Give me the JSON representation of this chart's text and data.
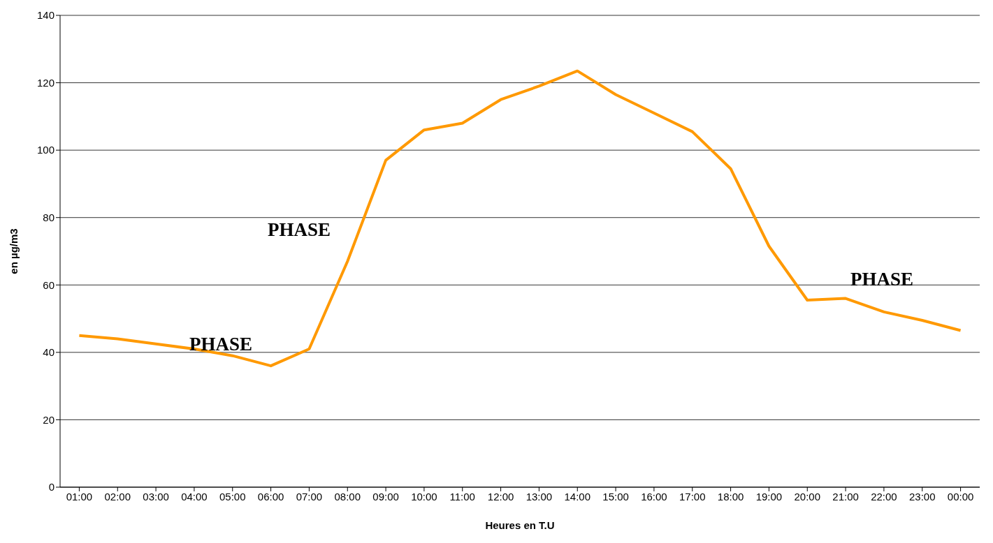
{
  "chart_data": {
    "type": "line",
    "xlabel": "Heures en T.U",
    "ylabel": "en µg/m3",
    "categories": [
      "01:00",
      "02:00",
      "03:00",
      "04:00",
      "05:00",
      "06:00",
      "07:00",
      "08:00",
      "09:00",
      "10:00",
      "11:00",
      "12:00",
      "13:00",
      "14:00",
      "15:00",
      "16:00",
      "17:00",
      "18:00",
      "19:00",
      "20:00",
      "21:00",
      "22:00",
      "23:00",
      "00:00"
    ],
    "series": [
      {
        "color": "#ff9900",
        "values": [
          45,
          44,
          42.5,
          41,
          39,
          36,
          41,
          67,
          97,
          106,
          108,
          115,
          119,
          123.5,
          116.5,
          111,
          105.5,
          94.5,
          71.5,
          55.5,
          56,
          52,
          49.5,
          46.5
        ]
      }
    ],
    "ylim": [
      0,
      140
    ],
    "yticks": [
      0,
      20,
      40,
      60,
      80,
      100,
      120,
      140
    ],
    "grid": "y",
    "legend": false,
    "marker": "none",
    "line_style": "solid",
    "annotations": [
      "PHASE",
      "PHASE",
      "PHASE"
    ]
  }
}
